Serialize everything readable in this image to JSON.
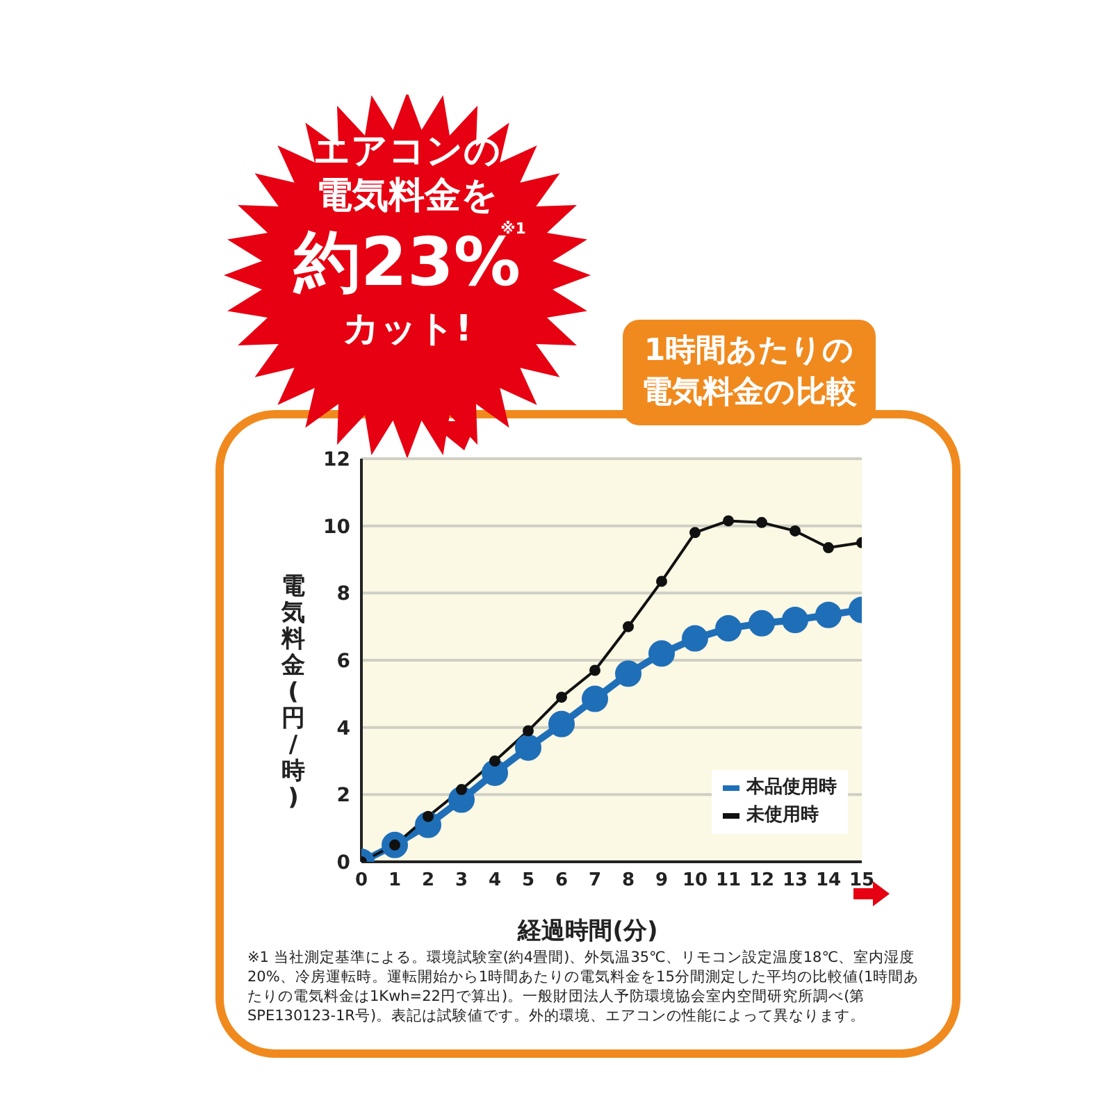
{
  "chart_data": {
    "type": "line",
    "title": "1時間あたりの電気料金の比較",
    "xlabel": "経過時間(分)",
    "ylabel": "電気料金(円/時)",
    "x": [
      0,
      1,
      2,
      3,
      4,
      5,
      6,
      7,
      8,
      9,
      10,
      11,
      12,
      13,
      14,
      15
    ],
    "series": [
      {
        "name": "本品使用時",
        "color": "#1f6fb8",
        "values": [
          0,
          0.5,
          1.1,
          1.85,
          2.65,
          3.4,
          4.1,
          4.85,
          5.6,
          6.2,
          6.65,
          6.95,
          7.1,
          7.2,
          7.35,
          7.5
        ]
      },
      {
        "name": "未使用時",
        "color": "#111111",
        "values": [
          0,
          0.5,
          1.35,
          2.15,
          3.0,
          3.9,
          4.9,
          5.7,
          7.0,
          8.35,
          9.8,
          10.15,
          10.1,
          9.85,
          9.35,
          9.5
        ]
      }
    ],
    "xlim": [
      0,
      15
    ],
    "xticks": [
      0,
      1,
      2,
      3,
      4,
      5,
      6,
      7,
      8,
      9,
      10,
      11,
      12,
      13,
      14,
      15
    ],
    "ylim": [
      0,
      12
    ],
    "yticks": [
      0,
      2,
      4,
      6,
      8,
      10,
      12
    ],
    "grid": "y",
    "legend": "bottom right",
    "marker": "circle",
    "line_style": "solid",
    "annotations": [
      "エアコンの",
      "電気料金を",
      "約23%",
      "※1",
      "カット!",
      "※1 当社測定基準による。環境試験室(約4畳間)、外気温35℃、リモコン設定温度18℃、室内湿度20%、冷房運転時。運転開始から1時間あたりの電気料金を15分間測定した平均の比較値(1時間あたりの電気料金は1Kwh=22円で算出)。一般財団法人予防環境協会室内空間研究所調べ(第SPE130123-1R号)。表記は試験値です。外的環境、エアコンの性能によって異なります。"
    ]
  }
}
